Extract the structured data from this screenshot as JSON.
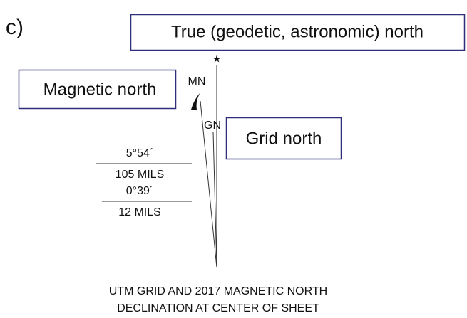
{
  "label": "c)",
  "boxes": {
    "true_north": "True (geodetic, astronomic) north",
    "magnetic_north": "Magnetic north",
    "grid_north": "Grid north"
  },
  "line_labels": {
    "mn": "MN",
    "gn": "GN"
  },
  "angles": {
    "declination_degrees": "5°54´",
    "declination_mils": "105 MILS",
    "grid_degrees": "0°39´",
    "grid_mils": "12 MILS"
  },
  "caption": [
    "UTM GRID AND 2017 MAGNETIC NORTH",
    "DECLINATION AT CENTER OF SHEET"
  ]
}
